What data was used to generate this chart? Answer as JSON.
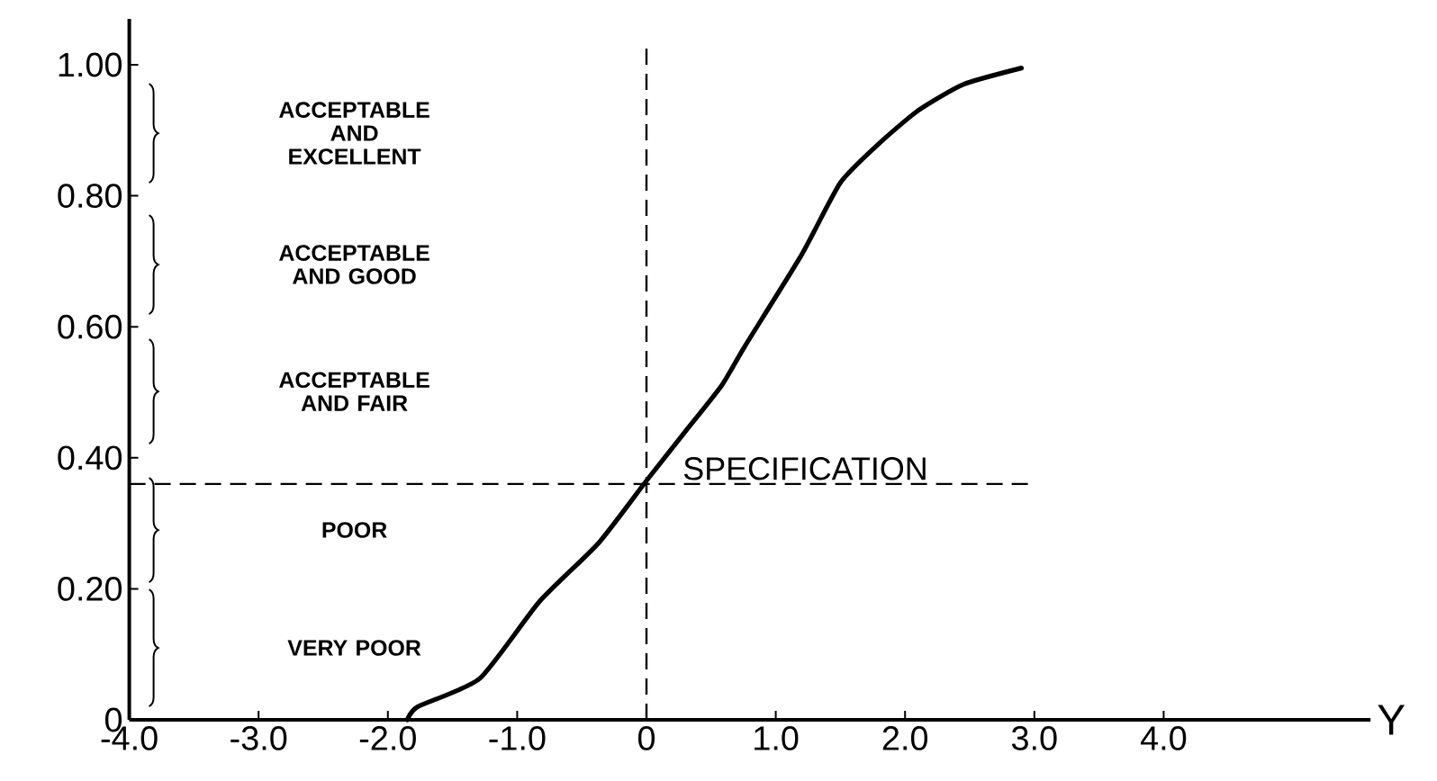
{
  "chart_data": {
    "type": "line",
    "xlabel": "Y",
    "x": [
      -1.85,
      -1.77,
      -1.29,
      -0.83,
      -0.37,
      0,
      0.3,
      0.58,
      0.76,
      1.2,
      1.5,
      1.8,
      2.1,
      2.45,
      2.9
    ],
    "values": [
      0,
      0.02,
      0.063,
      0.18,
      0.27,
      0.365,
      0.44,
      0.51,
      0.57,
      0.71,
      0.82,
      0.88,
      0.93,
      0.97,
      0.995
    ],
    "color": "#000000",
    "line_style": "solid",
    "marker": "none",
    "grid": false,
    "xlim": [
      -4,
      5.6
    ],
    "ylim": [
      0,
      1.07
    ],
    "xticks": [
      {
        "value": -4,
        "label": "-4.0"
      },
      {
        "value": -3,
        "label": "-3.0"
      },
      {
        "value": -2,
        "label": "-2.0"
      },
      {
        "value": -1,
        "label": "-1.0"
      },
      0,
      {
        "value": 1,
        "label": "1.0"
      },
      {
        "value": 2,
        "label": "2.0"
      },
      {
        "value": 3,
        "label": "3.0"
      },
      {
        "value": 4,
        "label": "4.0"
      }
    ],
    "yticks": [
      0,
      {
        "value": 0.2,
        "label": "0.20"
      },
      {
        "value": 0.4,
        "label": "0.40"
      },
      {
        "value": 0.6,
        "label": "0.60"
      },
      {
        "value": 0.8,
        "label": "0.80"
      },
      {
        "value": 1.0,
        "label": "1.00"
      }
    ],
    "ref_lines": [
      {
        "axis": "x",
        "value": 0,
        "line_style": "dashed"
      },
      {
        "axis": "y",
        "value": 0.36,
        "label": "SPECIFICATION",
        "line_style": "dashed"
      }
    ],
    "annotations": [
      "ACCEPTABLE AND EXCELLENT",
      "ACCEPTABLE AND GOOD",
      "ACCEPTABLE AND FAIR",
      "POOR",
      "VERY POOR"
    ]
  }
}
